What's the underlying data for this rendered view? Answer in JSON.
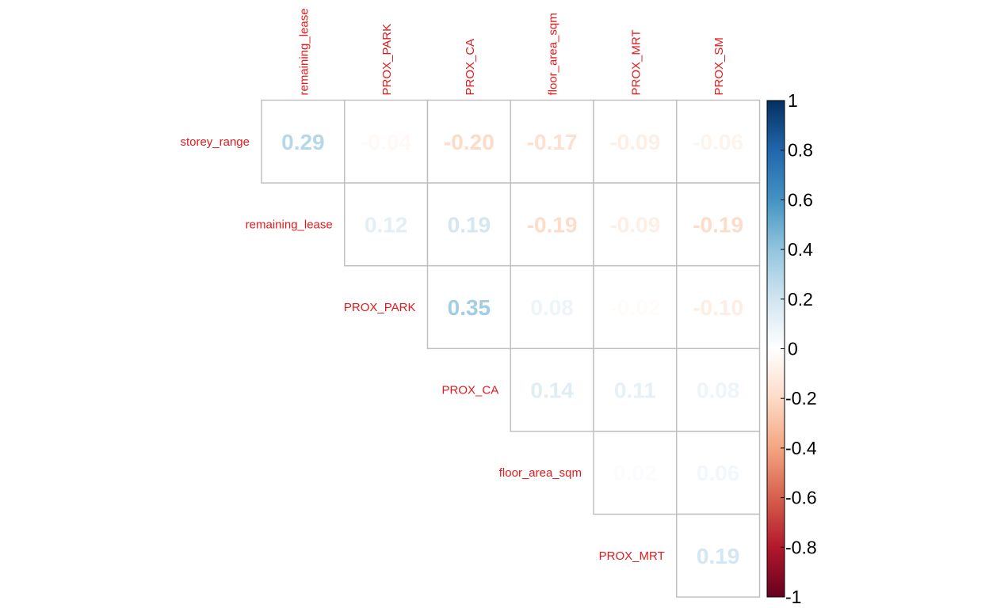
{
  "chart_data": {
    "type": "heatmap",
    "subtype": "correlation-matrix-upper-triangle",
    "title": "",
    "columns": [
      "remaining_lease",
      "PROX_PARK",
      "PROX_CA",
      "floor_area_sqm",
      "PROX_MRT",
      "PROX_SM"
    ],
    "rows": [
      "storey_range",
      "remaining_lease",
      "PROX_PARK",
      "PROX_CA",
      "floor_area_sqm",
      "PROX_MRT"
    ],
    "cells": [
      {
        "row": "storey_range",
        "col": "remaining_lease",
        "label": "0.29",
        "value": 0.29
      },
      {
        "row": "storey_range",
        "col": "PROX_PARK",
        "label": "-0.04",
        "value": -0.04
      },
      {
        "row": "storey_range",
        "col": "PROX_CA",
        "label": "-0.20",
        "value": -0.2
      },
      {
        "row": "storey_range",
        "col": "floor_area_sqm",
        "label": "-0.17",
        "value": -0.17
      },
      {
        "row": "storey_range",
        "col": "PROX_MRT",
        "label": "-0.09",
        "value": -0.09
      },
      {
        "row": "storey_range",
        "col": "PROX_SM",
        "label": "-0.06",
        "value": -0.06
      },
      {
        "row": "remaining_lease",
        "col": "PROX_PARK",
        "label": "0.12",
        "value": 0.12
      },
      {
        "row": "remaining_lease",
        "col": "PROX_CA",
        "label": "0.19",
        "value": 0.19
      },
      {
        "row": "remaining_lease",
        "col": "floor_area_sqm",
        "label": "-0.19",
        "value": -0.19
      },
      {
        "row": "remaining_lease",
        "col": "PROX_MRT",
        "label": "-0.09",
        "value": -0.09
      },
      {
        "row": "remaining_lease",
        "col": "PROX_SM",
        "label": "-0.19",
        "value": -0.19
      },
      {
        "row": "PROX_PARK",
        "col": "PROX_CA",
        "label": "0.35",
        "value": 0.35
      },
      {
        "row": "PROX_PARK",
        "col": "floor_area_sqm",
        "label": "0.08",
        "value": 0.08
      },
      {
        "row": "PROX_PARK",
        "col": "PROX_MRT",
        "label": "-0.02",
        "value": -0.02
      },
      {
        "row": "PROX_PARK",
        "col": "PROX_SM",
        "label": "-0.10",
        "value": -0.1
      },
      {
        "row": "PROX_CA",
        "col": "floor_area_sqm",
        "label": "0.14",
        "value": 0.14
      },
      {
        "row": "PROX_CA",
        "col": "PROX_MRT",
        "label": "0.11",
        "value": 0.11
      },
      {
        "row": "PROX_CA",
        "col": "PROX_SM",
        "label": "0.08",
        "value": 0.08
      },
      {
        "row": "floor_area_sqm",
        "col": "PROX_MRT",
        "label": "0.02",
        "value": 0.02
      },
      {
        "row": "floor_area_sqm",
        "col": "PROX_SM",
        "label": "0.06",
        "value": 0.06
      },
      {
        "row": "PROX_MRT",
        "col": "PROX_SM",
        "label": "0.19",
        "value": 0.19
      }
    ],
    "colorbar": {
      "range": [
        -1,
        1
      ],
      "ticks": [
        "1",
        "0.8",
        "0.6",
        "0.4",
        "0.2",
        "0",
        "-0.2",
        "-0.4",
        "-0.6",
        "-0.8",
        "-1"
      ],
      "tick_values": [
        1,
        0.8,
        0.6,
        0.4,
        0.2,
        0,
        -0.2,
        -0.4,
        -0.6,
        -0.8,
        -1
      ],
      "palette": [
        "#67001F",
        "#B2182B",
        "#D6604D",
        "#F4A582",
        "#FDDBC7",
        "#FFFFFF",
        "#D1E5F0",
        "#92C5DE",
        "#4393C3",
        "#2166AC",
        "#053061"
      ],
      "placement": "right"
    },
    "label_color": "#E41A1C",
    "grid_color": "#C0C0C0",
    "grid": true,
    "legend": false
  }
}
